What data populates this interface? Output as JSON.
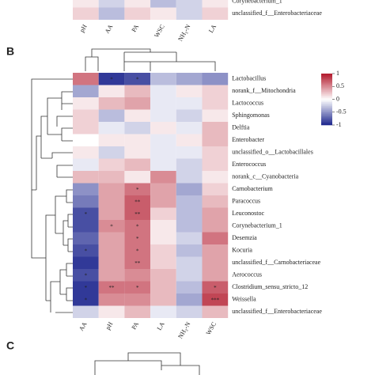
{
  "chart_data": [
    {
      "type": "heatmap",
      "rows": [
        "Corynebacterium_1",
        "unclassified_f__Enterobacteriaceae"
      ],
      "columns": [
        "pH",
        "AA",
        "PA",
        "WSC",
        "NH₃-N",
        "LA"
      ],
      "values": [
        [
          0.1,
          -0.2,
          0.1,
          -0.3,
          -0.2,
          0.1
        ],
        [
          0.2,
          -0.3,
          0.2,
          0.1,
          -0.2,
          0.2
        ]
      ],
      "clim": [
        -1,
        1
      ]
    },
    {
      "type": "heatmap",
      "panel": "B",
      "rows": [
        "Lactobacillus",
        "norank_f__Mitochondria",
        "Lactococcus",
        "Sphingomonas",
        "Delftia",
        "Enterobacter",
        "unclassified_o__Lactobacillales",
        "Enterococcus",
        "norank_c__Cyanobacteria",
        "Carnobacterium",
        "Paracoccus",
        "Leuconostoc",
        "Corynebacterium_1",
        "Desemzia",
        "Kocuria",
        "unclassified_f__Carnobacteriaceae",
        "Aerococcus",
        "Clostridium_sensu_stricto_12",
        "Weissella",
        "unclassified_f__Enterobacteriaceae"
      ],
      "columns": [
        "AA",
        "pH",
        "PA",
        "LA",
        "NH₃-N",
        "WSC"
      ],
      "values": [
        [
          0.6,
          -0.9,
          -0.8,
          -0.3,
          -0.4,
          -0.5
        ],
        [
          -0.4,
          0.1,
          0.3,
          -0.1,
          0.1,
          0.2
        ],
        [
          0.1,
          0.3,
          0.4,
          -0.1,
          -0.1,
          0.2
        ],
        [
          0.2,
          -0.3,
          0.1,
          -0.1,
          -0.2,
          0.1
        ],
        [
          0.2,
          -0.1,
          -0.2,
          0.1,
          -0.1,
          0.3
        ],
        [
          0.0,
          0.1,
          0.1,
          -0.1,
          0.1,
          0.3
        ],
        [
          0.1,
          -0.2,
          0.1,
          -0.1,
          -0.1,
          0.2
        ],
        [
          -0.1,
          0.2,
          0.3,
          -0.1,
          -0.2,
          0.2
        ],
        [
          0.3,
          0.3,
          0.1,
          0.5,
          -0.2,
          0.1
        ],
        [
          -0.5,
          0.4,
          0.6,
          0.4,
          -0.4,
          0.2
        ],
        [
          -0.6,
          0.4,
          0.7,
          0.4,
          -0.3,
          0.3
        ],
        [
          -0.8,
          0.4,
          0.7,
          0.2,
          -0.3,
          0.4
        ],
        [
          -0.8,
          0.5,
          0.6,
          0.1,
          -0.3,
          0.4
        ],
        [
          -0.7,
          0.4,
          0.6,
          0.1,
          -0.2,
          0.6
        ],
        [
          -0.8,
          0.4,
          0.6,
          0.2,
          -0.3,
          0.4
        ],
        [
          -0.9,
          0.4,
          0.6,
          0.2,
          -0.2,
          0.4
        ],
        [
          -0.8,
          0.4,
          0.5,
          0.3,
          -0.2,
          0.4
        ],
        [
          -0.9,
          0.6,
          0.6,
          0.3,
          -0.3,
          0.7
        ],
        [
          -0.9,
          0.5,
          0.5,
          0.3,
          -0.4,
          0.8
        ],
        [
          -0.2,
          0.1,
          0.3,
          -0.1,
          -0.2,
          0.3
        ]
      ],
      "value_labels": [
        [
          null,
          "*",
          "*",
          null,
          null,
          null
        ],
        [
          null,
          null,
          null,
          null,
          null,
          null
        ],
        [
          null,
          null,
          null,
          null,
          null,
          null
        ],
        [
          null,
          null,
          null,
          null,
          null,
          null
        ],
        [
          null,
          null,
          null,
          null,
          null,
          null
        ],
        [
          null,
          null,
          null,
          null,
          null,
          null
        ],
        [
          null,
          null,
          null,
          null,
          null,
          null
        ],
        [
          null,
          null,
          null,
          null,
          null,
          null
        ],
        [
          null,
          null,
          null,
          null,
          null,
          null
        ],
        [
          null,
          null,
          "*",
          null,
          null,
          null
        ],
        [
          null,
          null,
          "**",
          null,
          null,
          null
        ],
        [
          "*",
          null,
          "**",
          null,
          null,
          null
        ],
        [
          null,
          "*",
          "*",
          null,
          null,
          null
        ],
        [
          null,
          null,
          "*",
          null,
          null,
          null
        ],
        [
          "*",
          null,
          "*",
          null,
          null,
          null
        ],
        [
          null,
          null,
          "**",
          null,
          null,
          null
        ],
        [
          "*",
          null,
          null,
          null,
          null,
          null
        ],
        [
          "*",
          "**",
          "*",
          null,
          null,
          "*"
        ],
        [
          "*",
          null,
          null,
          null,
          null,
          "***"
        ],
        [
          null,
          null,
          null,
          null,
          null,
          null
        ]
      ],
      "clim": [
        -1,
        1
      ],
      "cticks": [
        1,
        0.5,
        0,
        -0.5,
        -1
      ]
    },
    {
      "type": "dendrogram",
      "panel": "C"
    }
  ]
}
